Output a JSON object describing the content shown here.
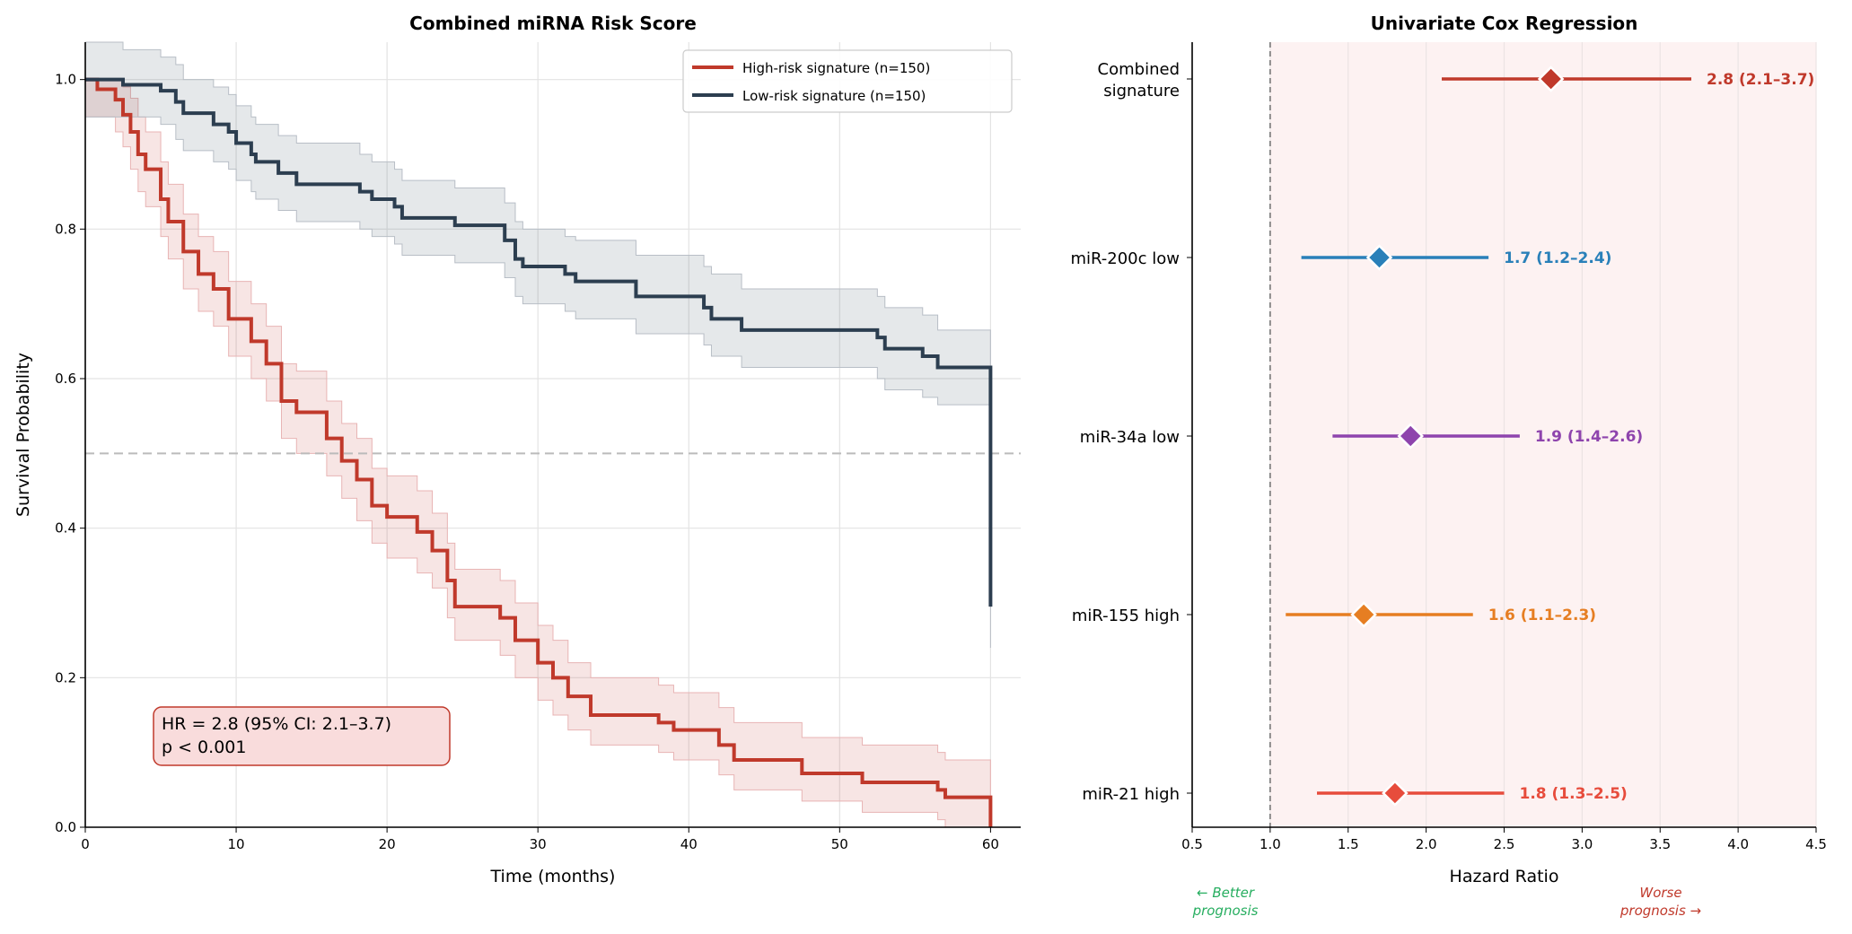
{
  "chart_data": [
    {
      "type": "line",
      "title": "Combined miRNA Risk Score",
      "xlabel": "Time (months)",
      "ylabel": "Survival Probability",
      "xlim": [
        0,
        62
      ],
      "ylim": [
        0,
        1.05
      ],
      "xticks": [
        "0",
        "10",
        "20",
        "30",
        "40",
        "50",
        "60"
      ],
      "yticks": [
        "0.0",
        "0.2",
        "0.4",
        "0.6",
        "0.8",
        "1.0"
      ],
      "grid": true,
      "reference_line": 0.5,
      "legend_placement": "top-right",
      "annotation": [
        "HR = 2.8 (95% CI: 2.1–3.7)",
        "p < 0.001"
      ],
      "series": [
        {
          "name": "High-risk signature (n=150)",
          "color": "#c0392b",
          "steps": [
            [
              0,
              1.0,
              0.95,
              1.0
            ],
            [
              0.8,
              0.987,
              0.95,
              1.0
            ],
            [
              2.0,
              0.973,
              0.93,
              1.0
            ],
            [
              2.5,
              0.953,
              0.91,
              0.99
            ],
            [
              3.0,
              0.93,
              0.88,
              0.975
            ],
            [
              3.5,
              0.9,
              0.85,
              0.95
            ],
            [
              4.0,
              0.88,
              0.83,
              0.93
            ],
            [
              5.0,
              0.84,
              0.79,
              0.89
            ],
            [
              5.5,
              0.81,
              0.76,
              0.86
            ],
            [
              6.5,
              0.77,
              0.72,
              0.82
            ],
            [
              7.5,
              0.74,
              0.69,
              0.79
            ],
            [
              8.5,
              0.72,
              0.67,
              0.77
            ],
            [
              9.5,
              0.68,
              0.63,
              0.73
            ],
            [
              11,
              0.65,
              0.6,
              0.7
            ],
            [
              12,
              0.62,
              0.57,
              0.67
            ],
            [
              13,
              0.57,
              0.52,
              0.62
            ],
            [
              14,
              0.555,
              0.5,
              0.61
            ],
            [
              16,
              0.52,
              0.47,
              0.57
            ],
            [
              17,
              0.49,
              0.44,
              0.54
            ],
            [
              18,
              0.465,
              0.41,
              0.52
            ],
            [
              19,
              0.43,
              0.38,
              0.48
            ],
            [
              20,
              0.415,
              0.36,
              0.47
            ],
            [
              22,
              0.395,
              0.34,
              0.45
            ],
            [
              23,
              0.37,
              0.32,
              0.42
            ],
            [
              24,
              0.33,
              0.28,
              0.38
            ],
            [
              24.5,
              0.295,
              0.25,
              0.345
            ],
            [
              27.5,
              0.28,
              0.23,
              0.33
            ],
            [
              28.5,
              0.25,
              0.2,
              0.3
            ],
            [
              30,
              0.22,
              0.17,
              0.27
            ],
            [
              31,
              0.2,
              0.15,
              0.25
            ],
            [
              32,
              0.175,
              0.13,
              0.22
            ],
            [
              33.5,
              0.15,
              0.11,
              0.2
            ],
            [
              38,
              0.14,
              0.1,
              0.19
            ],
            [
              39,
              0.13,
              0.09,
              0.18
            ],
            [
              42,
              0.11,
              0.07,
              0.16
            ],
            [
              43,
              0.09,
              0.05,
              0.14
            ],
            [
              47.5,
              0.072,
              0.035,
              0.12
            ],
            [
              51.5,
              0.06,
              0.02,
              0.11
            ],
            [
              56.5,
              0.05,
              0.01,
              0.1
            ],
            [
              57,
              0.04,
              0.0,
              0.09
            ],
            [
              60,
              0.0,
              0.0,
              0.0
            ]
          ]
        },
        {
          "name": "Low-risk signature (n=150)",
          "color": "#2c3e50",
          "steps": [
            [
              0,
              1.0,
              0.95,
              1.05
            ],
            [
              2.5,
              0.993,
              0.95,
              1.04
            ],
            [
              5,
              0.985,
              0.94,
              1.03
            ],
            [
              6,
              0.97,
              0.92,
              1.02
            ],
            [
              6.5,
              0.955,
              0.905,
              1.0
            ],
            [
              8.5,
              0.94,
              0.89,
              0.99
            ],
            [
              9.5,
              0.93,
              0.88,
              0.98
            ],
            [
              10,
              0.915,
              0.865,
              0.965
            ],
            [
              11,
              0.9,
              0.85,
              0.95
            ],
            [
              11.3,
              0.89,
              0.84,
              0.94
            ],
            [
              12.8,
              0.875,
              0.825,
              0.925
            ],
            [
              14,
              0.86,
              0.81,
              0.915
            ],
            [
              18.2,
              0.85,
              0.8,
              0.9
            ],
            [
              19,
              0.84,
              0.79,
              0.89
            ],
            [
              20.5,
              0.83,
              0.78,
              0.88
            ],
            [
              21,
              0.815,
              0.765,
              0.865
            ],
            [
              24.5,
              0.805,
              0.755,
              0.855
            ],
            [
              27.8,
              0.785,
              0.735,
              0.835
            ],
            [
              28.5,
              0.76,
              0.71,
              0.81
            ],
            [
              29,
              0.75,
              0.7,
              0.8
            ],
            [
              31.8,
              0.74,
              0.69,
              0.79
            ],
            [
              32.5,
              0.73,
              0.68,
              0.785
            ],
            [
              36.5,
              0.71,
              0.66,
              0.765
            ],
            [
              41,
              0.695,
              0.645,
              0.75
            ],
            [
              41.5,
              0.68,
              0.63,
              0.74
            ],
            [
              43.5,
              0.665,
              0.615,
              0.72
            ],
            [
              52.5,
              0.655,
              0.6,
              0.71
            ],
            [
              53,
              0.64,
              0.585,
              0.695
            ],
            [
              55.5,
              0.63,
              0.575,
              0.685
            ],
            [
              56.5,
              0.615,
              0.565,
              0.665
            ],
            [
              60,
              0.295,
              0.24,
              0.665
            ]
          ]
        }
      ]
    },
    {
      "type": "forest",
      "title": "Univariate Cox Regression",
      "xlabel": "Hazard Ratio",
      "xlim": [
        0.5,
        4.5
      ],
      "xticks": [
        "0.5",
        "1.0",
        "1.5",
        "2.0",
        "2.5",
        "3.0",
        "3.5",
        "4.0",
        "4.5"
      ],
      "reference_line": 1.0,
      "grid": true,
      "annotations": {
        "better": [
          "← Better",
          "prognosis"
        ],
        "better_color": "#27ae60",
        "worse": [
          "Worse",
          "prognosis →"
        ],
        "worse_color": "#c0392b"
      },
      "rows": [
        {
          "label": [
            "Combined",
            "signature"
          ],
          "hr": 2.8,
          "lo": 2.1,
          "hi": 3.7,
          "text": "2.8 (2.1–3.7)",
          "color": "#c0392b"
        },
        {
          "label": [
            "miR-200c low"
          ],
          "hr": 1.7,
          "lo": 1.2,
          "hi": 2.4,
          "text": "1.7 (1.2–2.4)",
          "color": "#2980b9"
        },
        {
          "label": [
            "miR-34a low"
          ],
          "hr": 1.9,
          "lo": 1.4,
          "hi": 2.6,
          "text": "1.9 (1.4–2.6)",
          "color": "#8e44ad"
        },
        {
          "label": [
            "miR-155 high"
          ],
          "hr": 1.6,
          "lo": 1.1,
          "hi": 2.3,
          "text": "1.6 (1.1–2.3)",
          "color": "#e67e22"
        },
        {
          "label": [
            "miR-21 high"
          ],
          "hr": 1.8,
          "lo": 1.3,
          "hi": 2.5,
          "text": "1.8 (1.3–2.5)",
          "color": "#e74c3c"
        }
      ]
    }
  ]
}
